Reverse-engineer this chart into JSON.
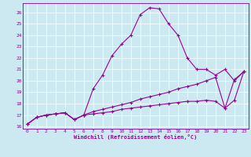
{
  "xlabel": "Windchill (Refroidissement éolien,°C)",
  "bg_color": "#cce8f0",
  "line_color": "#990099",
  "grid_color": "#ffffff",
  "spine_color": "#7700aa",
  "xlim": [
    -0.5,
    23.5
  ],
  "ylim": [
    15.8,
    26.8
  ],
  "xticks": [
    0,
    1,
    2,
    3,
    4,
    5,
    6,
    7,
    8,
    9,
    10,
    11,
    12,
    13,
    14,
    15,
    16,
    17,
    18,
    19,
    20,
    21,
    22,
    23
  ],
  "yticks": [
    16,
    17,
    18,
    19,
    20,
    21,
    22,
    23,
    24,
    25,
    26
  ],
  "curve1_x": [
    0,
    1,
    2,
    3,
    4,
    5,
    6,
    7,
    8,
    9,
    10,
    11,
    12,
    13,
    14,
    15,
    16,
    17,
    18,
    19,
    20,
    21,
    22,
    23
  ],
  "curve1_y": [
    16.2,
    16.8,
    17.0,
    17.1,
    17.2,
    16.6,
    17.0,
    19.3,
    20.5,
    22.2,
    23.2,
    24.0,
    25.8,
    26.4,
    26.3,
    25.0,
    24.0,
    22.0,
    21.0,
    21.0,
    20.5,
    21.0,
    20.0,
    20.8
  ],
  "curve2_x": [
    0,
    1,
    2,
    3,
    4,
    5,
    6,
    7,
    8,
    9,
    10,
    11,
    12,
    13,
    14,
    15,
    16,
    17,
    18,
    19,
    20,
    21,
    22,
    23
  ],
  "curve2_y": [
    16.2,
    16.8,
    17.0,
    17.1,
    17.2,
    16.6,
    17.0,
    17.3,
    17.5,
    17.7,
    17.9,
    18.1,
    18.4,
    18.6,
    18.8,
    19.0,
    19.3,
    19.5,
    19.7,
    20.0,
    20.3,
    17.6,
    20.1,
    20.8
  ],
  "curve3_x": [
    0,
    1,
    2,
    3,
    4,
    5,
    6,
    7,
    8,
    9,
    10,
    11,
    12,
    13,
    14,
    15,
    16,
    17,
    18,
    19,
    20,
    21,
    22,
    23
  ],
  "curve3_y": [
    16.2,
    16.8,
    17.0,
    17.1,
    17.2,
    16.6,
    17.0,
    17.1,
    17.2,
    17.3,
    17.5,
    17.6,
    17.7,
    17.8,
    17.9,
    18.0,
    18.1,
    18.2,
    18.2,
    18.3,
    18.2,
    17.6,
    18.3,
    20.8
  ]
}
